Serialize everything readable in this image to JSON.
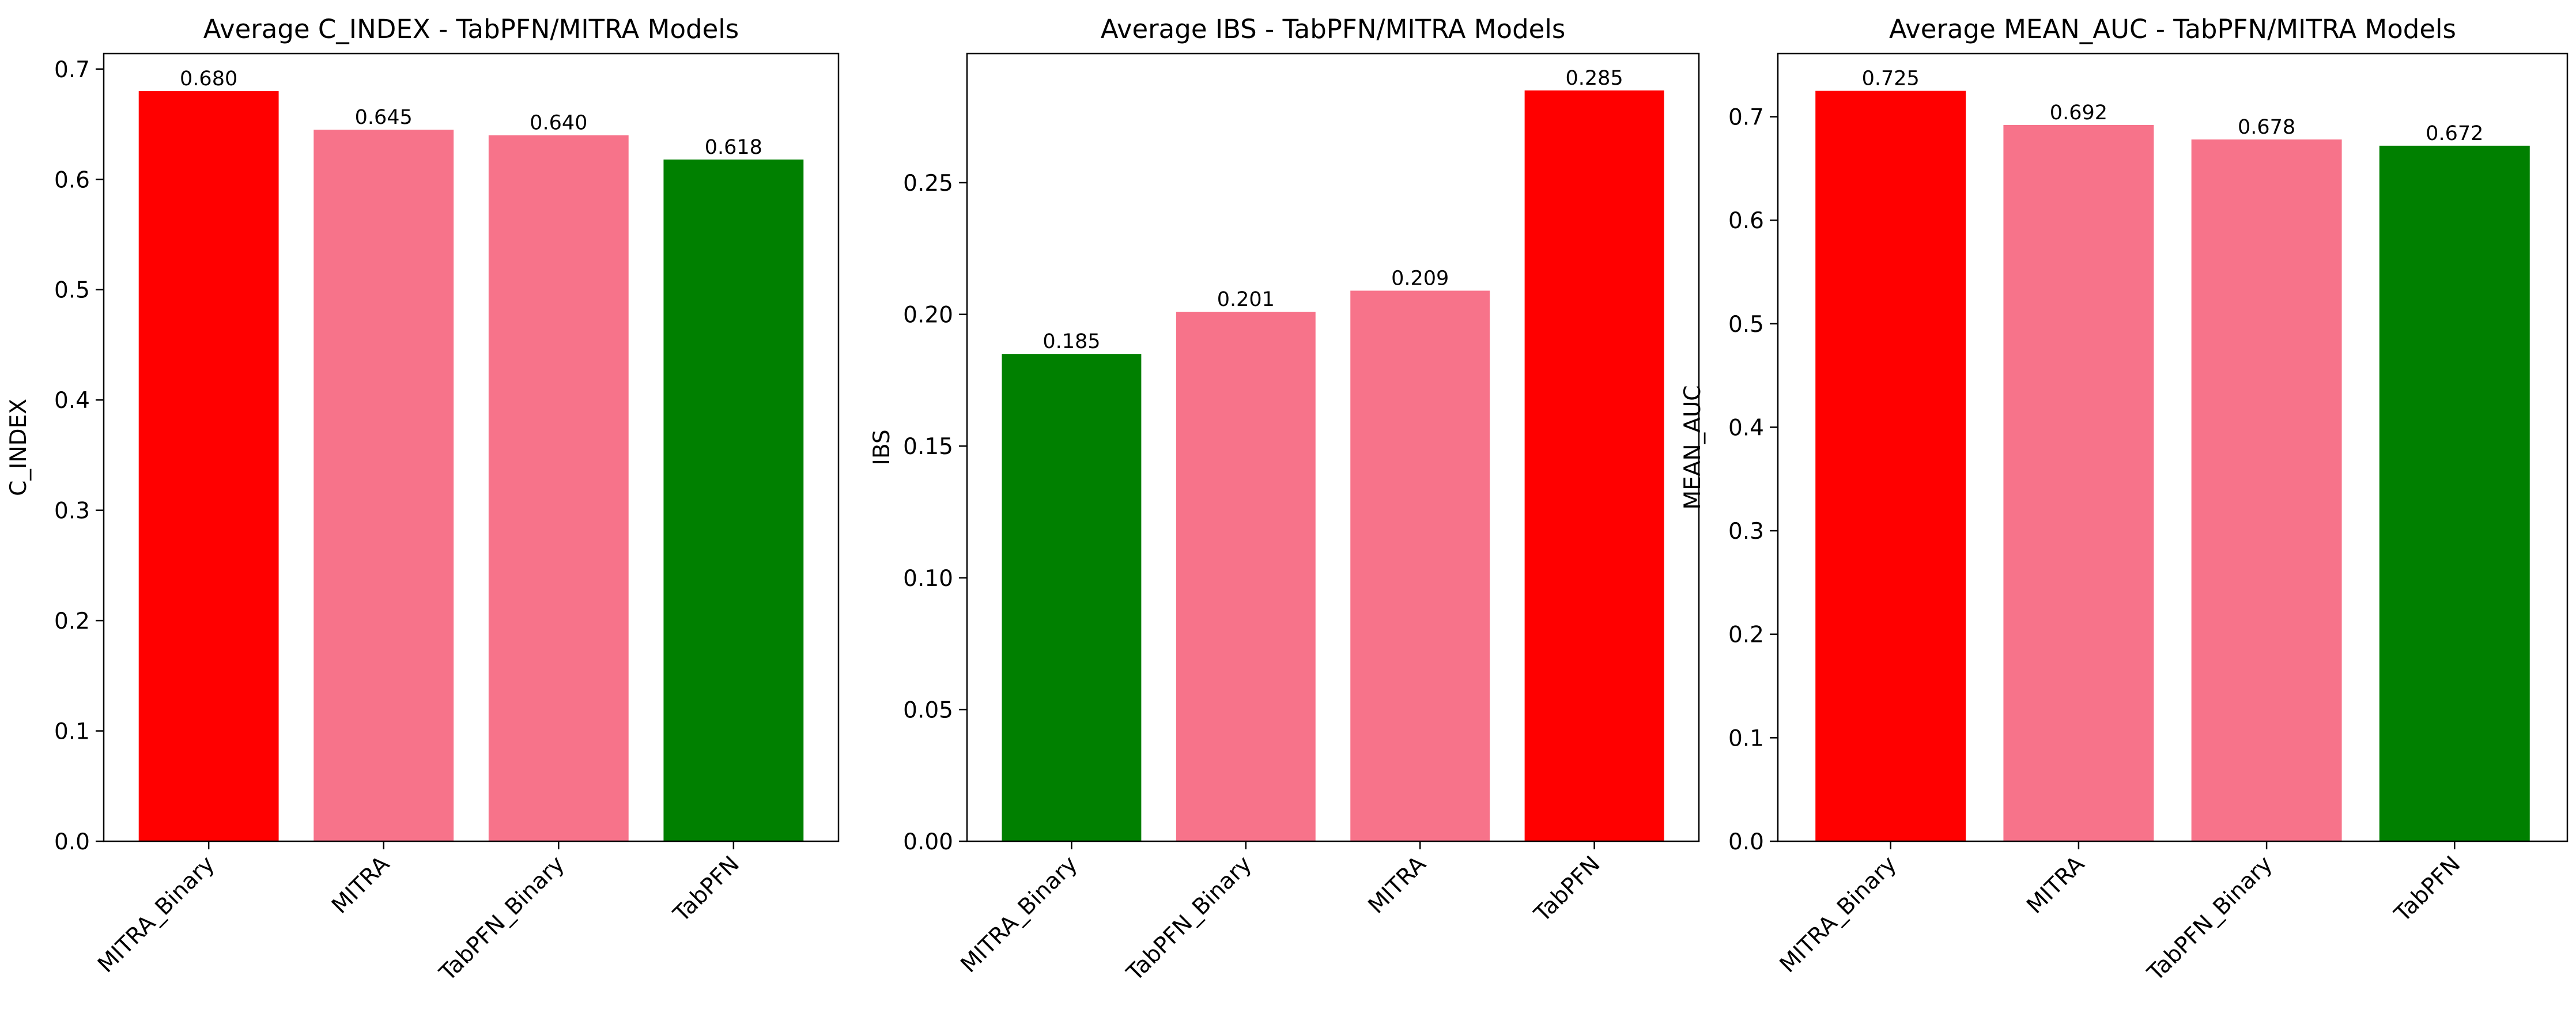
{
  "colors": {
    "best": "#ff0000",
    "middle": "#f7738a",
    "worst": "#008000",
    "axis": "#000000",
    "background": "#ffffff"
  },
  "chart_data": [
    {
      "type": "bar",
      "title": "Average C_INDEX - TabPFN/MITRA Models",
      "ylabel": "C_INDEX",
      "categories": [
        "MITRA_Binary",
        "MITRA",
        "TabPFN_Binary",
        "TabPFN"
      ],
      "values": [
        0.68,
        0.645,
        0.64,
        0.618
      ],
      "data_labels": [
        "0.680",
        "0.645",
        "0.640",
        "0.618"
      ],
      "bar_colors": [
        "best",
        "middle",
        "middle",
        "worst"
      ],
      "ylim": [
        0,
        0.714
      ],
      "yticks": [
        0.0,
        0.1,
        0.2,
        0.3,
        0.4,
        0.5,
        0.6,
        0.7
      ],
      "ytick_labels": [
        "0.0",
        "0.1",
        "0.2",
        "0.3",
        "0.4",
        "0.5",
        "0.6",
        "0.7"
      ],
      "grid": false,
      "legend": "none"
    },
    {
      "type": "bar",
      "title": "Average IBS - TabPFN/MITRA Models",
      "ylabel": "IBS",
      "categories": [
        "MITRA_Binary",
        "TabPFN_Binary",
        "MITRA",
        "TabPFN"
      ],
      "values": [
        0.185,
        0.201,
        0.209,
        0.285
      ],
      "data_labels": [
        "0.185",
        "0.201",
        "0.209",
        "0.285"
      ],
      "bar_colors": [
        "worst",
        "middle",
        "middle",
        "best"
      ],
      "ylim": [
        0,
        0.299
      ],
      "yticks": [
        0.0,
        0.05,
        0.1,
        0.15,
        0.2,
        0.25
      ],
      "ytick_labels": [
        "0.00",
        "0.05",
        "0.10",
        "0.15",
        "0.20",
        "0.25"
      ],
      "grid": false,
      "legend": "none"
    },
    {
      "type": "bar",
      "title": "Average MEAN_AUC - TabPFN/MITRA Models",
      "ylabel": "MEAN_AUC",
      "categories": [
        "MITRA_Binary",
        "MITRA",
        "TabPFN_Binary",
        "TabPFN"
      ],
      "values": [
        0.725,
        0.692,
        0.678,
        0.672
      ],
      "data_labels": [
        "0.725",
        "0.692",
        "0.678",
        "0.672"
      ],
      "bar_colors": [
        "best",
        "middle",
        "middle",
        "worst"
      ],
      "ylim": [
        0,
        0.761
      ],
      "yticks": [
        0.0,
        0.1,
        0.2,
        0.3,
        0.4,
        0.5,
        0.6,
        0.7
      ],
      "ytick_labels": [
        "0.0",
        "0.1",
        "0.2",
        "0.3",
        "0.4",
        "0.5",
        "0.6",
        "0.7"
      ],
      "grid": false,
      "legend": "none"
    }
  ]
}
